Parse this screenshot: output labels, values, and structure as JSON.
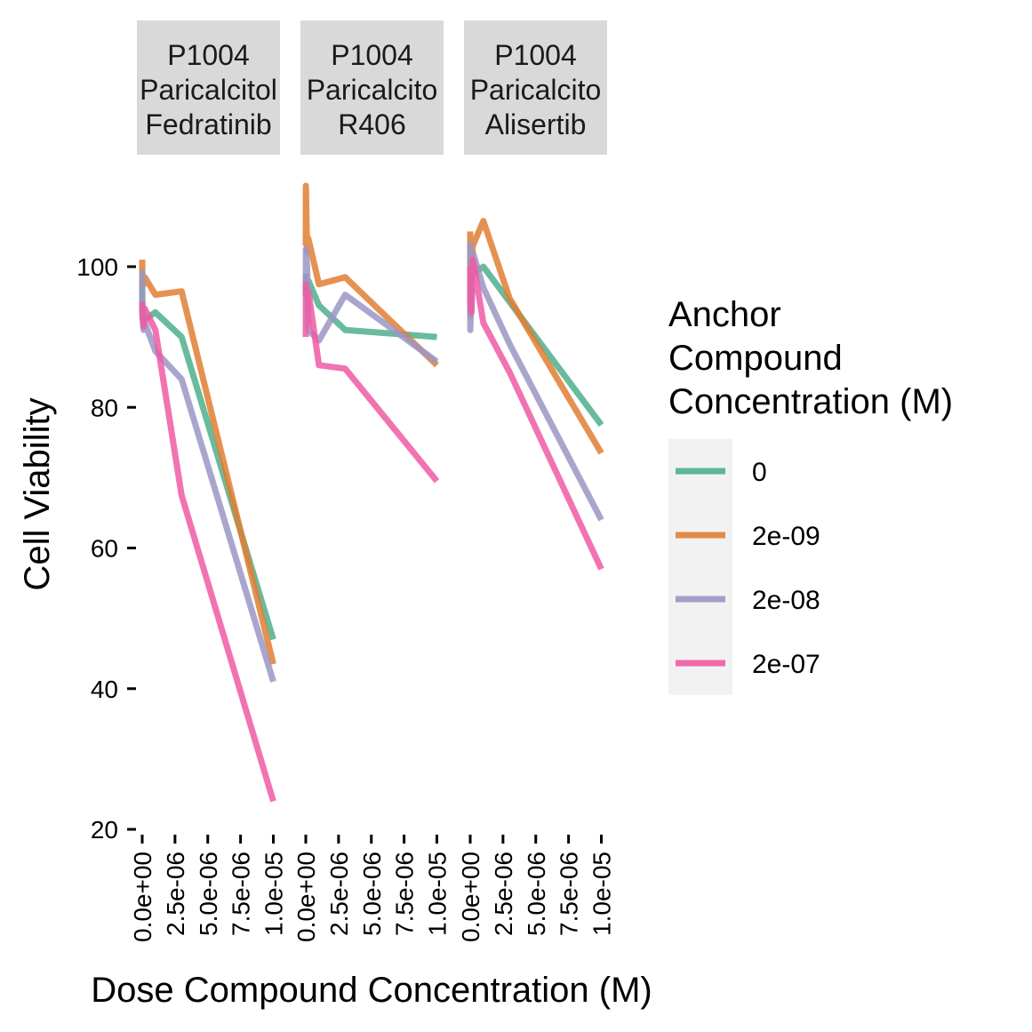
{
  "chart_data": {
    "type": "line",
    "xlabel": "Dose Compound Concentration (M)",
    "ylabel": "Cell Viability",
    "xlim": [
      0,
      1e-05
    ],
    "ylim": [
      20,
      110
    ],
    "x_ticks": [
      0,
      2.5e-06,
      5e-06,
      7.5e-06,
      1e-05
    ],
    "x_tick_labels": [
      "0.0e+00",
      "2.5e-06",
      "5.0e-06",
      "7.5e-06",
      "1.0e-05"
    ],
    "y_ticks": [
      20,
      40,
      60,
      80,
      100
    ],
    "y_tick_labels": [
      "20",
      "40",
      "60",
      "80",
      "100"
    ],
    "legend": {
      "title_lines": [
        "Anchor",
        "Compound",
        "Concentration (M)"
      ],
      "placement": "right",
      "entries": [
        {
          "label": "0",
          "color": "#4DAF8C"
        },
        {
          "label": "2e-09",
          "color": "#E07E33"
        },
        {
          "label": "2e-08",
          "color": "#9A96C6"
        },
        {
          "label": "2e-07",
          "color": "#EE5BA3"
        }
      ]
    },
    "panels": [
      {
        "strip": [
          "P1004",
          "Paricalcitol",
          "Fedratinib"
        ],
        "series": [
          {
            "name": "0",
            "x": [
              0,
              1e-08,
              1e-07,
              2e-07,
              1e-06,
              3e-06,
              1e-05
            ],
            "y": [
              98,
              95,
              93,
              92.5,
              93.5,
              90,
              47
            ]
          },
          {
            "name": "2e-09",
            "x": [
              0,
              1e-08,
              1e-07,
              2e-07,
              1e-06,
              3e-06,
              1e-05
            ],
            "y": [
              101,
              99,
              97.5,
              98.5,
              96,
              96.5,
              43.5
            ]
          },
          {
            "name": "2e-08",
            "x": [
              0,
              1e-08,
              1e-07,
              2e-07,
              1e-06,
              3e-06,
              1e-05
            ],
            "y": [
              99.5,
              93,
              91,
              92,
              88,
              84,
              41
            ]
          },
          {
            "name": "2e-07",
            "x": [
              0,
              1e-08,
              1e-07,
              2e-07,
              1e-06,
              3e-06,
              1e-05
            ],
            "y": [
              95,
              93.5,
              91.5,
              94,
              91,
              67.5,
              24
            ]
          }
        ]
      },
      {
        "strip": [
          "P1004",
          "Paricalcito",
          "R406"
        ],
        "series": [
          {
            "name": "0",
            "x": [
              0,
              1e-08,
              1e-07,
              2e-07,
              1e-06,
              3e-06,
              1e-05
            ],
            "y": [
              99,
              96,
              96.5,
              98,
              94.5,
              91,
              90
            ]
          },
          {
            "name": "2e-09",
            "x": [
              0,
              1e-08,
              1e-07,
              2e-07,
              1e-06,
              3e-06,
              1e-05
            ],
            "y": [
              103,
              111.5,
              102,
              104,
              97.5,
              98.5,
              86
            ]
          },
          {
            "name": "2e-08",
            "x": [
              0,
              1e-08,
              1e-07,
              2e-07,
              1e-06,
              3e-06,
              1e-05
            ],
            "y": [
              96,
              102.5,
              100,
              91,
              89.5,
              96,
              86.5
            ]
          },
          {
            "name": "2e-07",
            "x": [
              0,
              1e-08,
              1e-07,
              2e-07,
              1e-06,
              3e-06,
              1e-05
            ],
            "y": [
              90,
              97.5,
              92,
              96.5,
              86,
              85.5,
              69.5
            ]
          }
        ]
      },
      {
        "strip": [
          "P1004",
          "Paricalcito",
          "Alisertib"
        ],
        "series": [
          {
            "name": "0",
            "x": [
              0,
              1e-08,
              1e-07,
              2e-07,
              1e-06,
              3e-06,
              1e-05
            ],
            "y": [
              99,
              97,
              98.5,
              99,
              100,
              95,
              77.5
            ]
          },
          {
            "name": "2e-09",
            "x": [
              0,
              1e-08,
              1e-07,
              2e-07,
              1e-06,
              3e-06,
              1e-05
            ],
            "y": [
              105,
              93,
              101,
              103,
              106.5,
              95.5,
              73.5
            ]
          },
          {
            "name": "2e-08",
            "x": [
              0,
              1e-08,
              1e-07,
              2e-07,
              1e-06,
              3e-06,
              1e-05
            ],
            "y": [
              103.5,
              91,
              97,
              102,
              97,
              89,
              64
            ]
          },
          {
            "name": "2e-07",
            "x": [
              0,
              1e-08,
              1e-07,
              2e-07,
              1e-06,
              3e-06,
              1e-05
            ],
            "y": [
              100,
              95,
              93.5,
              101,
              92,
              85,
              57
            ]
          }
        ]
      }
    ]
  }
}
